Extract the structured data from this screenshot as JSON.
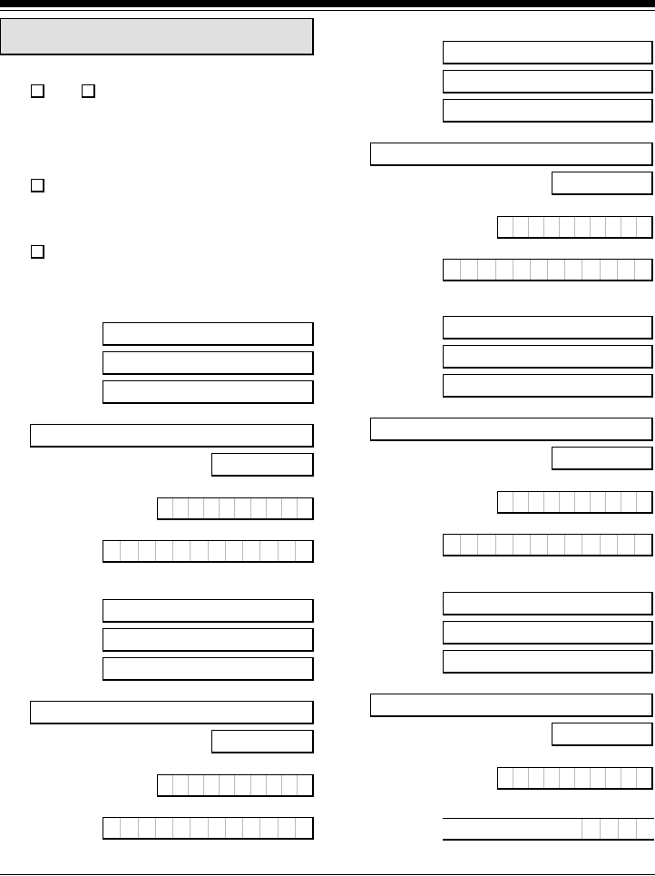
{
  "form": {
    "header_title": "",
    "checkboxes": [
      {
        "checked": false
      },
      {
        "checked": false
      },
      {
        "checked": false
      },
      {
        "checked": false
      }
    ],
    "fields_value": ""
  }
}
